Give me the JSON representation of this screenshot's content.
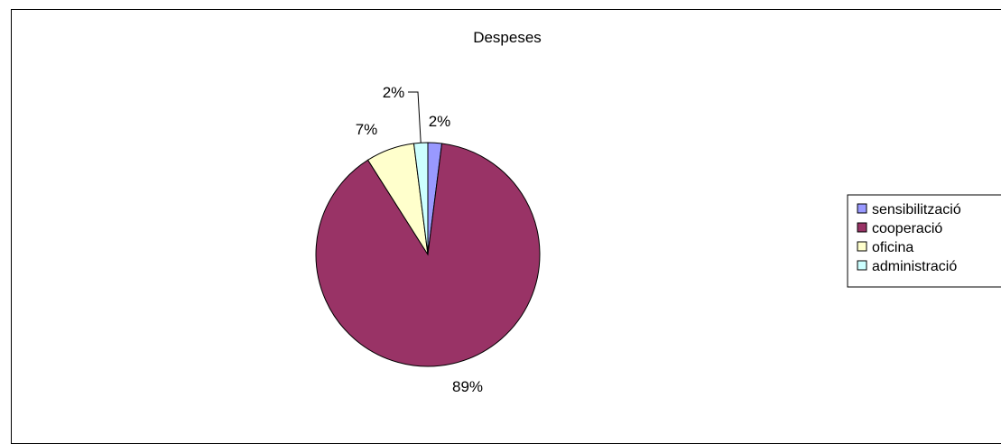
{
  "chart_data": {
    "type": "pie",
    "title": "Despeses",
    "categories": [
      "sensibilització",
      "cooperació",
      "oficina",
      "administració"
    ],
    "values": [
      2,
      89,
      7,
      2
    ],
    "labels": [
      "2%",
      "89%",
      "7%",
      "2%"
    ],
    "colors": [
      "#9999ff",
      "#993366",
      "#ffffcc",
      "#ccffff"
    ],
    "legend_position": "right",
    "legend": [
      "sensibilització",
      "cooperació",
      "oficina",
      "administració"
    ],
    "data_labels_shown": true,
    "start_angle_deg": 0,
    "direction": "clockwise"
  }
}
